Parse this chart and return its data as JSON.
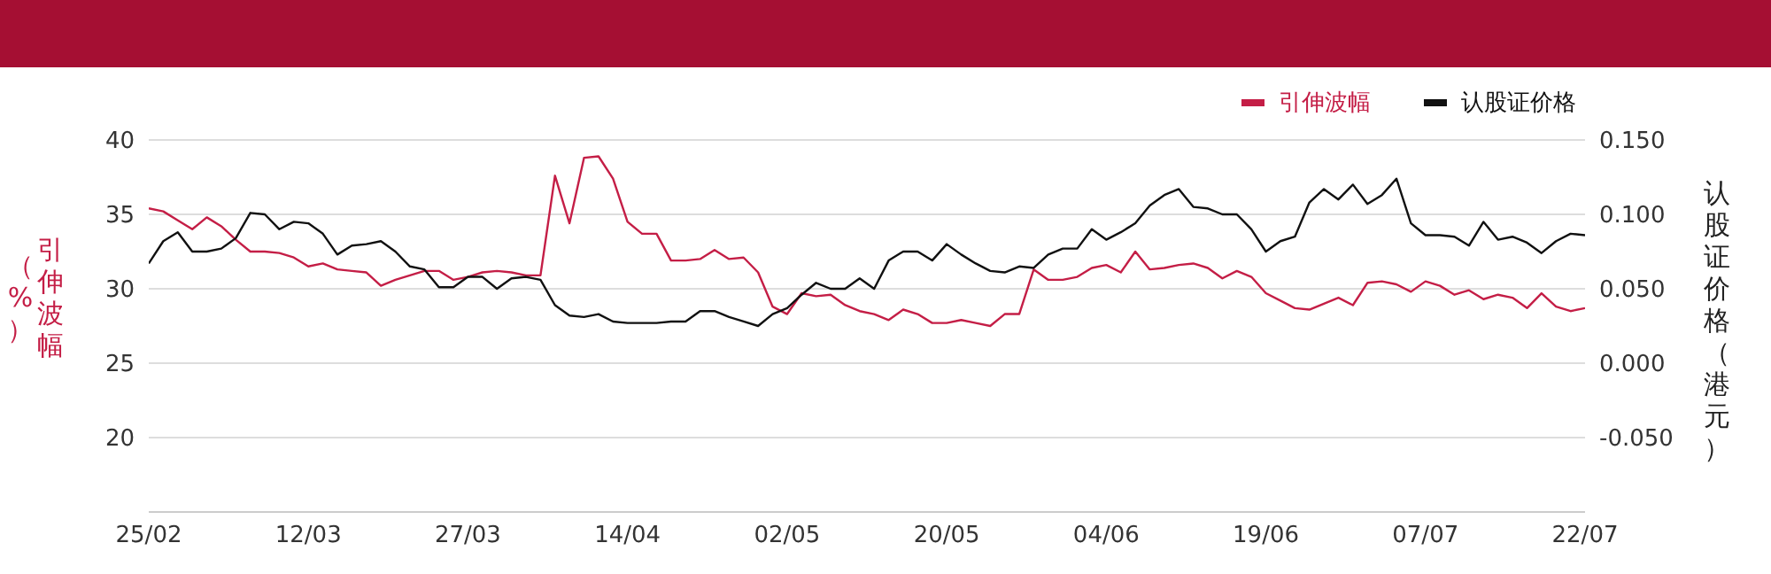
{
  "chart_data": {
    "type": "line",
    "ylabel": "引伸波幅（%）",
    "y2label": "认股证价格（港元）",
    "categories": [
      "25/02",
      null,
      null,
      null,
      null,
      null,
      null,
      null,
      null,
      null,
      null,
      "12/03",
      null,
      null,
      null,
      null,
      null,
      null,
      null,
      null,
      null,
      null,
      "27/03",
      null,
      null,
      null,
      null,
      null,
      null,
      null,
      null,
      null,
      null,
      "14/04",
      null,
      null,
      null,
      null,
      null,
      null,
      null,
      null,
      null,
      null,
      "02/05",
      null,
      null,
      null,
      null,
      null,
      null,
      null,
      null,
      null,
      null,
      "20/05",
      null,
      null,
      null,
      null,
      null,
      null,
      null,
      null,
      null,
      null,
      "04/06",
      null,
      null,
      null,
      null,
      null,
      null,
      null,
      null,
      null,
      null,
      "19/06",
      null,
      null,
      null,
      null,
      null,
      null,
      null,
      null,
      null,
      null,
      "07/07",
      null,
      null,
      null,
      null,
      null,
      null,
      null,
      null,
      null,
      null,
      "22/07"
    ],
    "series": [
      {
        "name": "引伸波幅",
        "color": "#c41e46",
        "values": [
          35.4,
          35.2,
          34.6,
          34.0,
          34.8,
          34.2,
          33.3,
          32.5,
          32.5,
          32.4,
          32.1,
          31.5,
          31.7,
          31.3,
          31.2,
          31.1,
          30.2,
          30.6,
          30.9,
          31.2,
          31.2,
          30.6,
          30.8,
          31.1,
          31.2,
          31.1,
          30.9,
          30.9,
          37.6,
          34.4,
          38.8,
          38.9,
          37.4,
          34.5,
          33.7,
          33.7,
          31.9,
          31.9,
          32.0,
          32.6,
          32.0,
          32.1,
          31.1,
          28.8,
          28.3,
          29.7,
          29.5,
          29.6,
          28.9,
          28.5,
          28.3,
          27.9,
          28.6,
          28.3,
          27.7,
          27.7,
          27.9,
          27.7,
          27.5,
          28.3,
          28.3,
          31.3,
          30.6,
          30.6,
          30.8,
          31.4,
          31.6,
          31.1,
          32.5,
          31.3,
          31.4,
          31.6,
          31.7,
          31.4,
          30.7,
          31.2,
          30.8,
          29.7,
          29.2,
          28.7,
          28.6,
          29.0,
          29.4,
          28.9,
          30.4,
          30.5,
          30.3,
          29.8,
          30.5,
          30.2,
          29.6,
          29.9,
          29.3,
          29.6,
          29.4,
          28.7,
          29.7,
          28.8,
          28.5,
          28.7
        ]
      },
      {
        "name": "认股证价格",
        "color": "#111111",
        "axis": "y2",
        "values": [
          0.067,
          0.082,
          0.088,
          0.075,
          0.075,
          0.077,
          0.084,
          0.101,
          0.1,
          0.09,
          0.095,
          0.094,
          0.087,
          0.073,
          0.079,
          0.08,
          0.082,
          0.075,
          0.065,
          0.063,
          0.051,
          0.051,
          0.058,
          0.058,
          0.05,
          0.057,
          0.058,
          0.056,
          0.039,
          0.032,
          0.031,
          0.033,
          0.028,
          0.027,
          0.027,
          0.027,
          0.028,
          0.028,
          0.035,
          0.035,
          0.031,
          0.028,
          0.025,
          0.033,
          0.037,
          0.046,
          0.054,
          0.05,
          0.05,
          0.057,
          0.05,
          0.069,
          0.075,
          0.075,
          0.069,
          0.08,
          0.073,
          0.067,
          0.062,
          0.061,
          0.065,
          0.064,
          0.073,
          0.077,
          0.077,
          0.09,
          0.083,
          0.088,
          0.094,
          0.106,
          0.113,
          0.117,
          0.105,
          0.104,
          0.1,
          0.1,
          0.09,
          0.075,
          0.082,
          0.085,
          0.108,
          0.117,
          0.11,
          0.12,
          0.107,
          0.113,
          0.124,
          0.094,
          0.086,
          0.086,
          0.085,
          0.079,
          0.095,
          0.083,
          0.085,
          0.081,
          0.074,
          0.082,
          0.087,
          0.086
        ]
      }
    ],
    "ylim": [
      15,
      40
    ],
    "yticks": [
      20,
      25,
      30,
      35,
      40
    ],
    "y2lim": [
      -0.1,
      0.15
    ],
    "y2ticks": [
      {
        "value": -0.05,
        "label": "-0.050"
      },
      {
        "value": 0,
        "label": "0.000"
      },
      {
        "value": 0.05,
        "label": "0.050"
      },
      {
        "value": 0.1,
        "label": "0.100"
      },
      {
        "value": 0.15,
        "label": "0.150"
      }
    ],
    "grid": "y",
    "legend": "top right",
    "marker": "none",
    "line_style": "solid"
  }
}
